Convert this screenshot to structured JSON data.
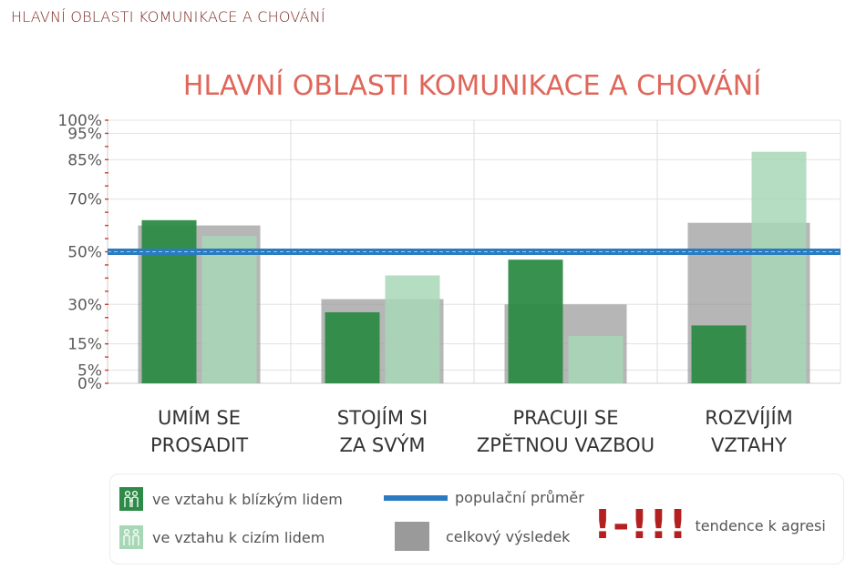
{
  "page_header": "HLAVNÍ OBLASTI KOMUNIKACE A CHOVÁNÍ",
  "chart_data": {
    "type": "bar",
    "title": "HLAVNÍ OBLASTI KOMUNIKACE A CHOVÁNÍ",
    "categories": [
      [
        "UMÍM SE",
        "PROSADIT"
      ],
      [
        "STOJÍM SI",
        "ZA SVÝM"
      ],
      [
        "PRACUJI SE",
        "ZPĚTNOU VAZBOU"
      ],
      [
        "ROZVÍJÍM",
        "VZTAHY"
      ]
    ],
    "series": [
      {
        "name": "ve vztahu k blízkým lidem",
        "values": [
          62,
          27,
          47,
          22
        ],
        "color": "#2e8b47"
      },
      {
        "name": "ve vztahu k cizím lidem",
        "values": [
          56,
          41,
          18,
          88
        ],
        "color": "#a7d7b6"
      },
      {
        "name": "celkový výsledek",
        "values": [
          60,
          32,
          30,
          61
        ],
        "color": "#9a9a9a"
      }
    ],
    "reference_line": {
      "name": "populační průměr",
      "value": 50,
      "color": "#2a7bbf"
    },
    "yticks": [
      0,
      5,
      15,
      30,
      50,
      70,
      85,
      95,
      100
    ],
    "ytick_labels": [
      "0%",
      "5%",
      "15%",
      "30%",
      "50%",
      "70%",
      "85%",
      "95%",
      "100%"
    ],
    "ylim": [
      0,
      100
    ],
    "grid": true,
    "legend_position": "bottom"
  },
  "legend": {
    "close": "ve vztahu k blízkým lidem",
    "stranger": "ve vztahu k cizím lidem",
    "population": "populační průměr",
    "total": "celkový výsledek",
    "aggression_marks": "!-!!!",
    "aggression": "tendence k agresi"
  },
  "colors": {
    "title": "#e0665a",
    "close": "#2e8b47",
    "stranger": "#a7d7b6",
    "total": "#9a9a9a",
    "population": "#2a7bbf",
    "aggression": "#b41f1f"
  },
  "icons": {
    "close": "people-close-icon",
    "stranger": "people-stranger-icon"
  }
}
